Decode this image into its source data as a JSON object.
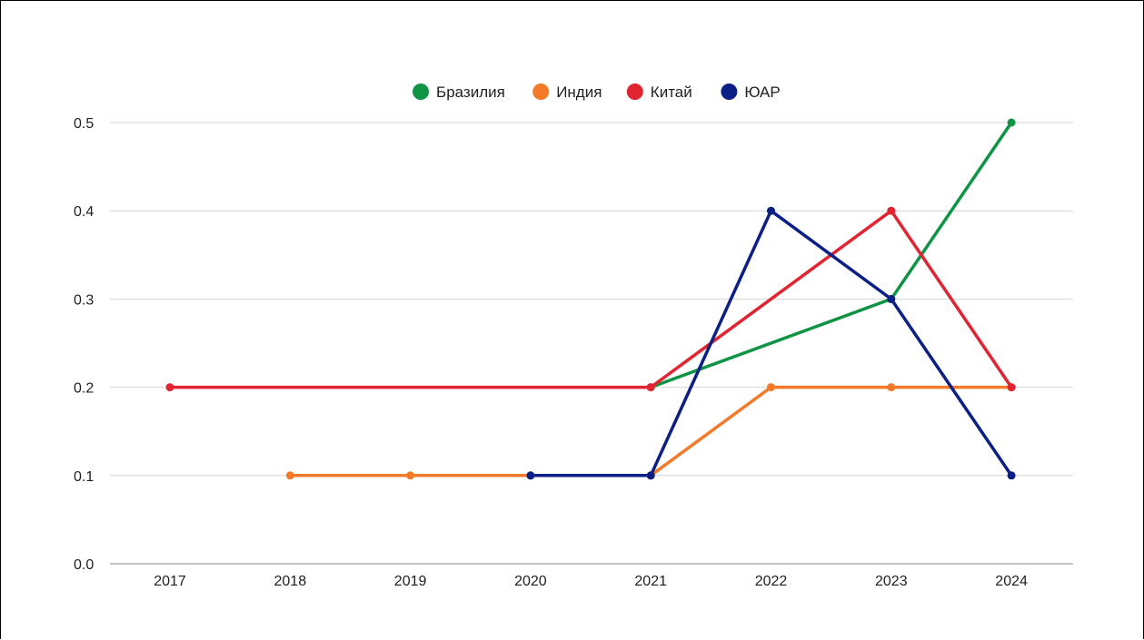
{
  "chart_data": {
    "type": "line",
    "title": "",
    "xlabel": "",
    "ylabel": "",
    "categories": [
      "2017",
      "2018",
      "2019",
      "2020",
      "2021",
      "2022",
      "2023",
      "2024"
    ],
    "ylim": [
      0,
      0.5
    ],
    "yticks": [
      "0.0",
      "0.1",
      "0.2",
      "0.3",
      "0.4",
      "0.5"
    ],
    "grid": true,
    "legend_position": "top-center",
    "series": [
      {
        "name": "Бразилия",
        "color": "#0e9444",
        "values": [
          null,
          null,
          null,
          null,
          0.2,
          null,
          0.3,
          0.5
        ]
      },
      {
        "name": "Индия",
        "color": "#f47a2a",
        "values": [
          null,
          0.1,
          0.1,
          0.1,
          0.1,
          0.2,
          0.2,
          0.2
        ]
      },
      {
        "name": "Китай",
        "color": "#e42331",
        "values": [
          0.2,
          null,
          null,
          null,
          0.2,
          null,
          0.4,
          0.2
        ]
      },
      {
        "name": "ЮАР",
        "color": "#0b1f86",
        "values": [
          null,
          null,
          null,
          0.1,
          0.1,
          0.4,
          0.3,
          0.1
        ]
      }
    ]
  }
}
